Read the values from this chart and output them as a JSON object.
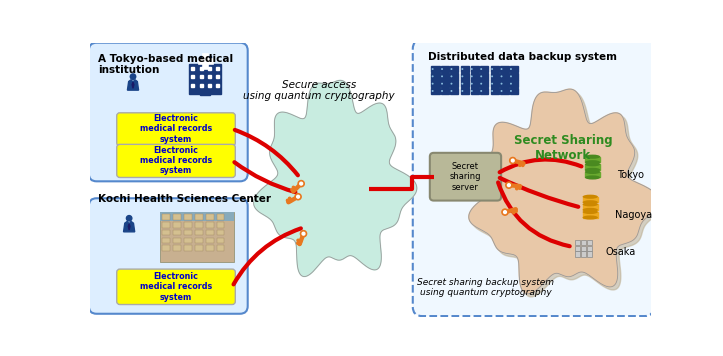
{
  "bg_color": "#ffffff",
  "tokyo_label": "A Tokyo-based medical\ninstitution",
  "kochi_label": "Kochi Health Sciences Center",
  "secure_access_label": "Secure access\nusing quantum cryptography",
  "distributed_label": "Distributed data backup system",
  "secret_sharing_label": "Secret Sharing\nNetwork",
  "secret_server_label": "Secret\nsharing\nserver",
  "secret_backup_label": "Secret sharing backup system\nusing quantum cryptography",
  "emr_label": "Electronic\nmedical records\nsystem",
  "tokyo_city": "Tokyo",
  "nagoya_city": "Nagoya",
  "osaka_city": "Osaka",
  "box_border": "#5588cc",
  "distributed_border": "#5588cc",
  "emr_bg": "#ffff00",
  "emr_border": "#aaaaaa",
  "cloud_left_color": "#c8ece0",
  "cloud_right_color": "#e8c8a8",
  "cloud_right_shadow": "#c8a888",
  "line_color": "#dd0000",
  "key_color": "#e87820",
  "server_bg": "#b8b898",
  "server_border": "#888870",
  "green_db1": "#4a8a20",
  "green_db2": "#6aaa30",
  "yellow_db1": "#cc8800",
  "yellow_db2": "#eeaa20",
  "gray_db1": "#aaaaaa",
  "gray_db2": "#cccccc",
  "person_color": "#1a4488",
  "hospital_color": "#1a3a7a",
  "rack_color": "#1a3a7a"
}
